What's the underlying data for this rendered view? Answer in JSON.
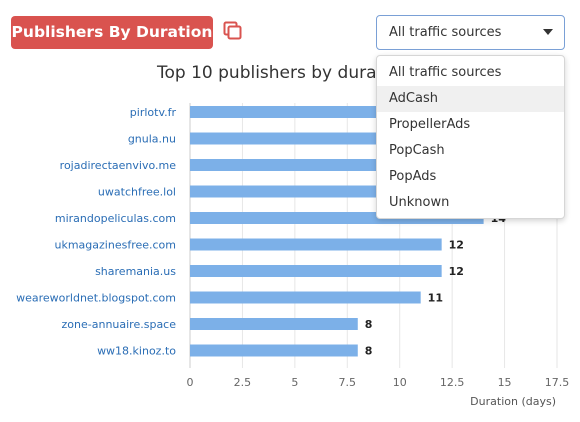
{
  "header": {
    "title": "Publishers By Duration",
    "copy_icon": "copy-icon"
  },
  "filter": {
    "selected": "All traffic sources",
    "options": [
      "All traffic sources",
      "AdCash",
      "PropellerAds",
      "PopCash",
      "PopAds",
      "Unknown"
    ],
    "highlighted": "AdCash"
  },
  "colors": {
    "badge": "#d9534f",
    "bar": "#7cb0e8",
    "link": "#2a6db5"
  },
  "chart_data": {
    "type": "bar",
    "orientation": "horizontal",
    "title": "Top 10 publishers by duration",
    "categories": [
      "pirlotv.fr",
      "gnula.nu",
      "rojadirectaenvivo.me",
      "uwatchfree.lol",
      "mirandopeliculas.com",
      "ukmagazinesfree.com",
      "sharemania.us",
      "weareworldnet.blogspot.com",
      "zone-annuaire.space",
      "ww18.kinoz.to"
    ],
    "values": [
      17,
      17,
      16,
      15,
      14,
      12,
      12,
      11,
      8,
      8
    ],
    "labels": [
      "",
      "",
      "",
      "",
      "14",
      "12",
      "12",
      "11",
      "8",
      "8"
    ],
    "xlabel": "Duration (days)",
    "xlim": [
      0,
      17.5
    ],
    "ticks": [
      0,
      2.5,
      5,
      7.5,
      10,
      12.5,
      15,
      17.5
    ],
    "grid": true,
    "legend": "none"
  }
}
